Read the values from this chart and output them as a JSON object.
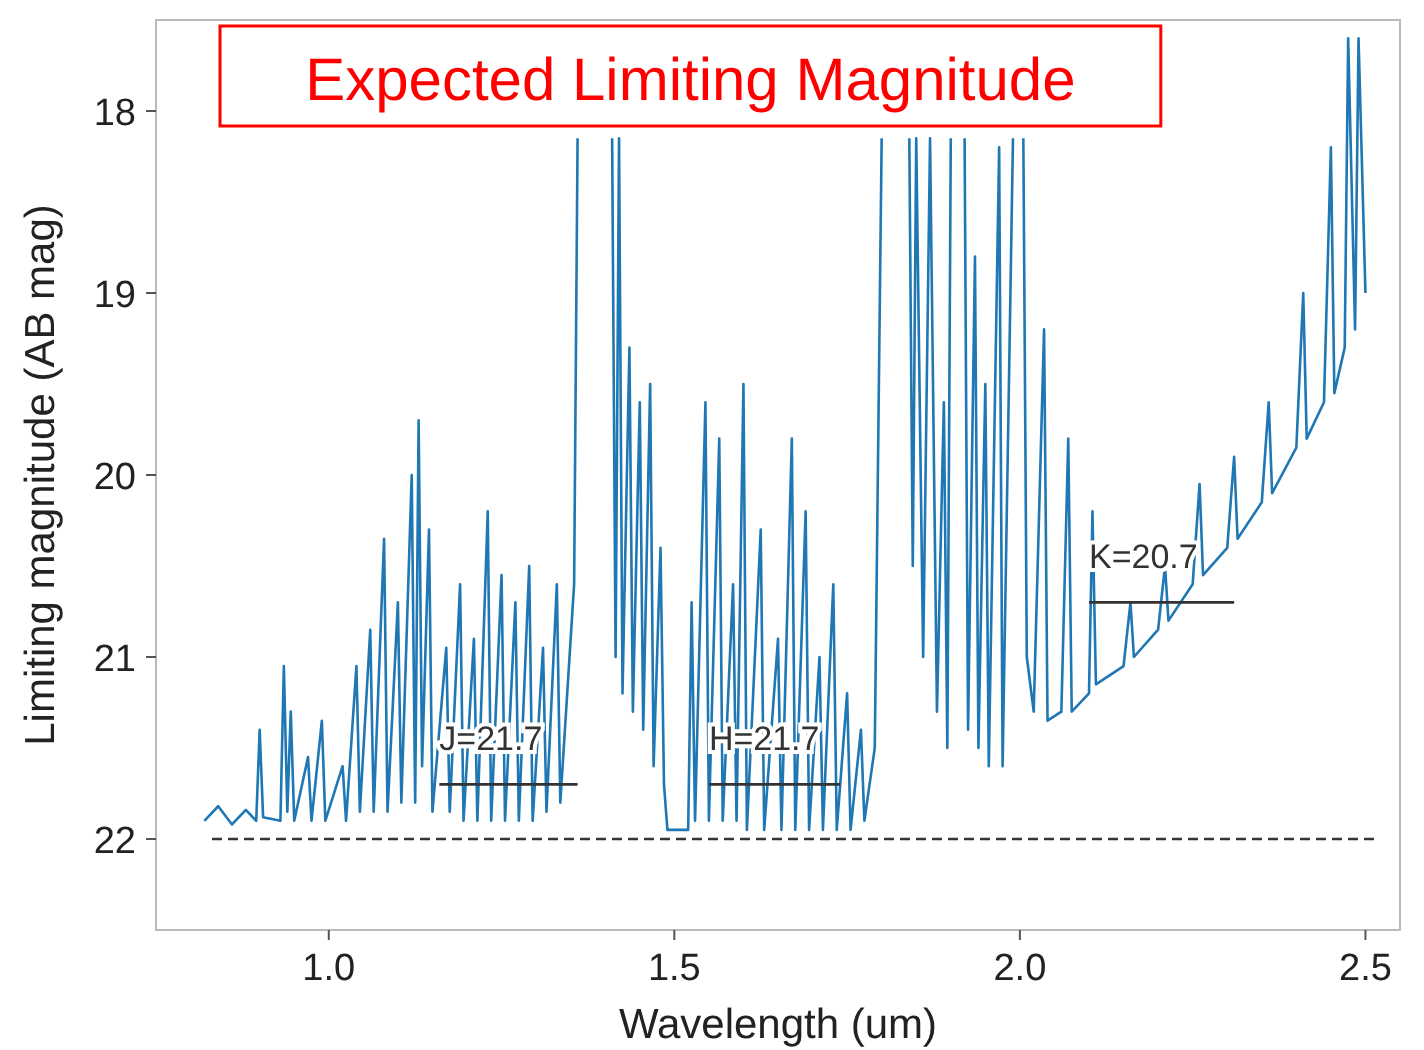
{
  "chart_data": {
    "type": "line",
    "title": "Expected Limiting Magnitude",
    "xlabel": "Wavelength (um)",
    "ylabel": "Limiting magnitude (AB mag)",
    "xlim": [
      0.75,
      2.55
    ],
    "xticks": [
      {
        "value": 1,
        "label": "1.0"
      },
      1.5,
      {
        "value": 2,
        "label": "2.0"
      },
      2.5
    ],
    "ylim": [
      22.5,
      17.5
    ],
    "yticks": [
      18,
      19,
      20,
      21,
      22
    ],
    "grid": false,
    "marker": "none",
    "line_style": "solid",
    "ref_lines": [
      {
        "axis": "y",
        "value": 22,
        "color": "#333333",
        "line_style": "dashed"
      }
    ],
    "series": [
      {
        "color": "#1f77b4",
        "x": [
          0.82,
          0.84,
          0.86,
          0.88,
          0.895,
          0.9,
          0.905,
          0.93,
          0.935,
          0.94,
          0.945,
          0.95,
          0.97,
          0.975,
          0.99,
          0.995,
          1.02,
          1.025,
          1.04,
          1.045,
          1.06,
          1.065,
          1.08,
          1.085,
          1.1,
          1.105,
          1.12,
          1.125,
          1.13,
          1.135,
          1.145,
          1.15,
          1.17,
          1.175,
          1.19,
          1.195,
          1.21,
          1.215,
          1.23,
          1.235,
          1.25,
          1.255,
          1.27,
          1.275,
          1.29,
          1.295,
          1.31,
          1.315,
          1.33,
          1.335,
          1.355,
          1.36,
          null,
          1.41,
          1.415,
          1.42,
          1.425,
          1.435,
          1.44,
          1.45,
          1.455,
          1.465,
          1.47,
          1.48,
          1.485,
          1.49,
          1.52,
          1.525,
          1.53,
          1.545,
          1.55,
          1.565,
          1.57,
          1.585,
          1.59,
          1.6,
          1.605,
          1.625,
          1.63,
          1.65,
          1.655,
          1.67,
          1.675,
          1.69,
          1.695,
          1.71,
          1.715,
          1.73,
          1.735,
          1.75,
          1.755,
          1.77,
          1.775,
          1.79,
          1.8,
          null,
          1.84,
          1.845,
          1.85,
          1.86,
          1.87,
          1.88,
          1.89,
          1.895,
          1.9,
          null,
          1.92,
          1.925,
          1.935,
          1.94,
          1.95,
          1.955,
          1.97,
          1.975,
          1.99,
          null,
          2.005,
          2.01,
          2.02,
          2.035,
          2.04,
          2.06,
          2.07,
          2.075,
          2.1,
          2.105,
          2.11,
          2.15,
          2.16,
          2.165,
          2.2,
          2.21,
          2.215,
          2.25,
          2.26,
          2.265,
          2.3,
          2.31,
          2.315,
          2.35,
          2.36,
          2.365,
          2.4,
          2.41,
          2.415,
          2.44,
          2.45,
          2.455,
          2.47,
          2.475,
          2.485,
          2.49,
          2.5
        ],
        "values": [
          21.9,
          21.82,
          21.92,
          21.84,
          21.9,
          21.4,
          21.88,
          21.9,
          21.05,
          21.85,
          21.3,
          21.9,
          21.55,
          21.9,
          21.35,
          21.9,
          21.6,
          21.9,
          21.05,
          21.85,
          20.85,
          21.85,
          20.35,
          21.85,
          20.7,
          21.8,
          20.0,
          21.8,
          19.7,
          21.6,
          20.3,
          21.85,
          20.95,
          21.85,
          20.6,
          21.9,
          20.9,
          21.9,
          20.2,
          21.9,
          20.55,
          21.9,
          20.7,
          21.9,
          20.5,
          21.9,
          20.95,
          21.85,
          20.6,
          21.8,
          20.6,
          18.15,
          null,
          18.15,
          21.0,
          18.15,
          21.2,
          19.3,
          21.3,
          19.6,
          21.4,
          19.5,
          21.6,
          20.4,
          21.7,
          21.95,
          21.95,
          20.7,
          21.9,
          19.6,
          21.9,
          19.8,
          21.9,
          20.6,
          21.9,
          19.5,
          21.95,
          20.3,
          21.95,
          20.9,
          21.95,
          19.8,
          21.95,
          20.2,
          21.95,
          21.0,
          21.95,
          20.6,
          21.95,
          21.2,
          21.95,
          21.4,
          21.9,
          21.5,
          18.15,
          null,
          18.15,
          20.5,
          18.15,
          21.0,
          18.15,
          21.3,
          19.6,
          21.5,
          18.15,
          null,
          18.15,
          21.4,
          18.8,
          21.5,
          19.5,
          21.6,
          18.2,
          21.6,
          18.15,
          null,
          18.15,
          21.0,
          21.3,
          19.2,
          21.35,
          21.3,
          19.8,
          21.3,
          21.2,
          20.2,
          21.15,
          21.05,
          20.7,
          21.0,
          20.85,
          20.5,
          20.8,
          20.6,
          20.05,
          20.55,
          20.4,
          19.9,
          20.35,
          20.15,
          19.6,
          20.1,
          19.85,
          19.0,
          19.8,
          19.6,
          18.2,
          19.55,
          19.3,
          17.6,
          19.2,
          17.6,
          19.0
        ]
      },
      {
        "name": "J=21.7",
        "color": "#333333",
        "x": [
          1.16,
          1.36
        ],
        "values": [
          21.7,
          21.7
        ]
      },
      {
        "name": "H=21.7",
        "color": "#333333",
        "x": [
          1.55,
          1.74
        ],
        "values": [
          21.7,
          21.7
        ]
      },
      {
        "name": "K=20.7",
        "color": "#333333",
        "x": [
          2.1,
          2.31
        ],
        "values": [
          20.7,
          20.7
        ]
      }
    ]
  }
}
